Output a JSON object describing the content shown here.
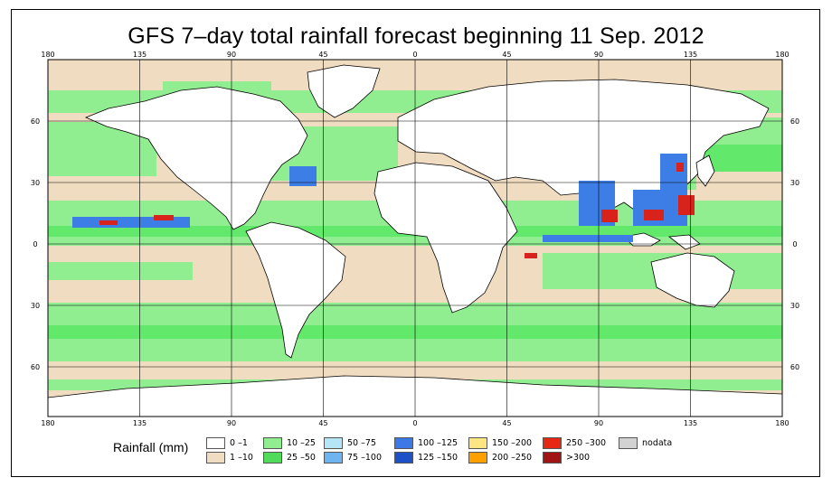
{
  "title": "GFS 7–day total rainfall forecast beginning 11 Sep. 2012",
  "map": {
    "lon_ticks": [
      "180",
      "135",
      "90",
      "45",
      "0",
      "45",
      "90",
      "135",
      "180"
    ],
    "lat_ticks": [
      "60",
      "30",
      "0",
      "30",
      "60"
    ],
    "colors": {
      "ocean_low": "#f0dcc0",
      "land_dry": "#ffffff",
      "light_rain": "#90ee90",
      "moderate_rain": "#62e86a",
      "heavy_rain": "#3d7de6",
      "extreme_rain": "#d8231c",
      "border": "#000000"
    }
  },
  "legend": {
    "title": "Rainfall (mm)",
    "items": [
      {
        "label": "0 –1",
        "color": "#ffffff"
      },
      {
        "label": "1 –10",
        "color": "#f0dcc0"
      },
      {
        "label": "10 –25",
        "color": "#90ee90"
      },
      {
        "label": "25 –50",
        "color": "#50dc5a"
      },
      {
        "label": "50 –75",
        "color": "#b4e6f8"
      },
      {
        "label": "75 –100",
        "color": "#6eb4f0"
      },
      {
        "label": "100 –125",
        "color": "#3c78e6"
      },
      {
        "label": "125 –150",
        "color": "#1e50c8"
      },
      {
        "label": "150 –200",
        "color": "#ffe682"
      },
      {
        "label": "200 –250",
        "color": "#ffa000"
      },
      {
        "label": "250 –300",
        "color": "#e62814"
      },
      {
        "label": ">300",
        "color": "#a01414"
      },
      {
        "label": "nodata",
        "color": "#d2d2d2"
      }
    ]
  }
}
